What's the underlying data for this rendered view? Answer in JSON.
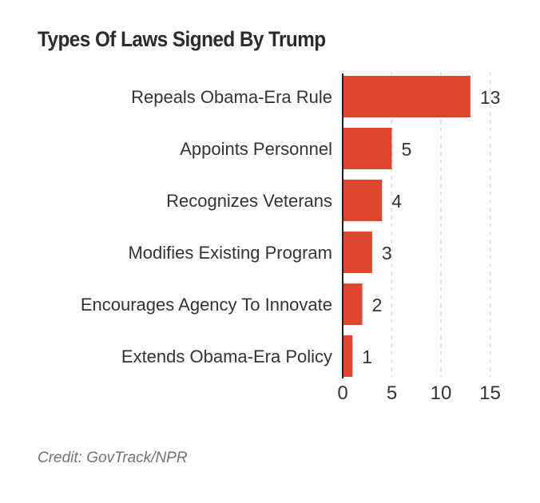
{
  "chart_data": {
    "type": "bar",
    "orientation": "horizontal",
    "title": "Types Of Laws Signed By Trump",
    "categories": [
      "Repeals Obama-Era Rule",
      "Appoints Personnel",
      "Recognizes Veterans",
      "Modifies Existing Program",
      "Encourages Agency To Innovate",
      "Extends Obama-Era Policy"
    ],
    "values": [
      13,
      5,
      4,
      3,
      2,
      1
    ],
    "xlabel": "",
    "ylabel": "",
    "xlim": [
      0,
      15
    ],
    "xticks": [
      0,
      5,
      10,
      15
    ],
    "grid": true,
    "bar_color": "#dc472e",
    "data_labels": true
  },
  "credit": "Credit: GovTrack/NPR"
}
